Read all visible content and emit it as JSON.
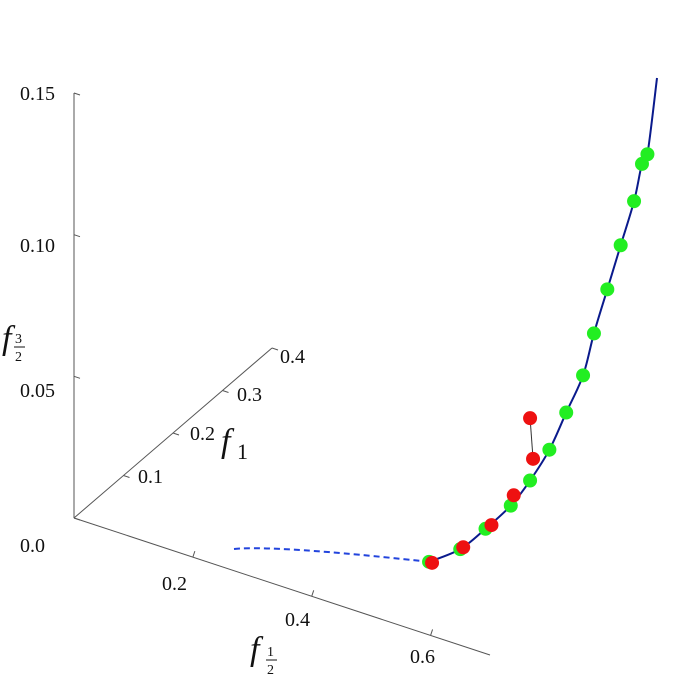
{
  "chart_data": {
    "type": "scatter",
    "projection": "3d",
    "axes": {
      "x": {
        "label_symbol": "f",
        "label_fraction": {
          "numerator": "1",
          "denominator": "2"
        },
        "range": [
          0,
          0.7
        ],
        "ticks": [
          "0.2",
          "0.4",
          "0.6"
        ],
        "tick_values": [
          0.2,
          0.4,
          0.6
        ]
      },
      "y": {
        "label_symbol": "f",
        "label_subscript": "1",
        "range": [
          0,
          0.4
        ],
        "ticks": [
          "0.1",
          "0.2",
          "0.3",
          "0.4"
        ],
        "tick_values": [
          0.1,
          0.2,
          0.3,
          0.4
        ]
      },
      "z": {
        "label_symbol": "f",
        "label_fraction": {
          "numerator": "3",
          "denominator": "2"
        },
        "range": [
          0,
          0.15
        ],
        "ticks": [
          "0.0",
          "0.05",
          "0.10",
          "0.15"
        ],
        "tick_values": [
          0.0,
          0.05,
          0.1,
          0.15
        ]
      }
    },
    "curve": {
      "color": "#0a1a8c",
      "dashed_color": "#2244dd",
      "dashed_segment": {
        "x": [
          0.4,
          0.51
        ],
        "z_start": 0.0
      },
      "solid_segment": {
        "x": [
          0.51,
          0.7
        ]
      }
    },
    "series": [
      {
        "color": "#22ee22",
        "points": [
          {
            "x": 0.51,
            "y": 0.105,
            "z": 0.004
          },
          {
            "x": 0.55,
            "y": 0.12,
            "z": 0.009
          },
          {
            "x": 0.58,
            "y": 0.135,
            "z": 0.016
          },
          {
            "x": 0.61,
            "y": 0.15,
            "z": 0.024
          },
          {
            "x": 0.63,
            "y": 0.165,
            "z": 0.032
          },
          {
            "x": 0.65,
            "y": 0.18,
            "z": 0.042
          },
          {
            "x": 0.67,
            "y": 0.19,
            "z": 0.055
          },
          {
            "x": 0.69,
            "y": 0.2,
            "z": 0.068
          },
          {
            "x": 0.7,
            "y": 0.21,
            "z": 0.082
          },
          {
            "x": 0.71,
            "y": 0.225,
            "z": 0.096
          },
          {
            "x": 0.72,
            "y": 0.24,
            "z": 0.11
          },
          {
            "x": 0.73,
            "y": 0.255,
            "z": 0.124
          },
          {
            "x": 0.735,
            "y": 0.265,
            "z": 0.136
          },
          {
            "x": 0.74,
            "y": 0.27,
            "z": 0.139
          }
        ]
      },
      {
        "color": "#ee1111",
        "points": [
          {
            "x": 0.515,
            "y": 0.105,
            "z": 0.004
          },
          {
            "x": 0.555,
            "y": 0.12,
            "z": 0.01
          },
          {
            "x": 0.59,
            "y": 0.135,
            "z": 0.018
          },
          {
            "x": 0.615,
            "y": 0.15,
            "z": 0.028
          },
          {
            "x": 0.635,
            "y": 0.165,
            "z": 0.04
          },
          {
            "x": 0.63,
            "y": 0.165,
            "z": 0.054
          }
        ]
      }
    ]
  }
}
